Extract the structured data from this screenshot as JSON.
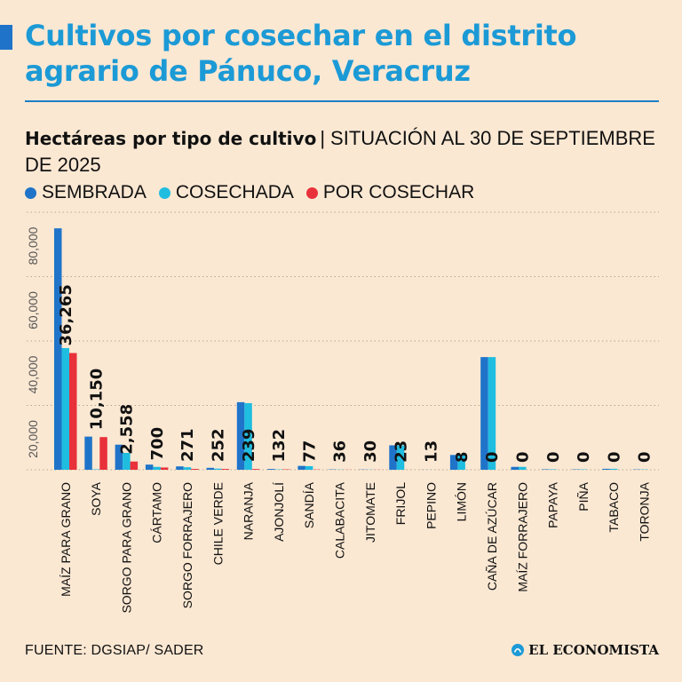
{
  "header": {
    "title": "Cultivos por cosechar en el distrito agrario de Pánuco, Veracruz",
    "subtitle_bold": "Hectáreas por tipo de cultivo",
    "subtitle_sep": "|",
    "subtitle_rest": "SITUACIÓN AL 30 DE SEPTIEMBRE DE 2025"
  },
  "colors": {
    "sembrada": "#1f74c9",
    "cosechada": "#1fbde0",
    "por_cosechar": "#e8313a",
    "title": "#1c9ad6"
  },
  "chart_data": {
    "type": "bar",
    "title": "Hectáreas por tipo de cultivo",
    "ylim": [
      0,
      80000
    ],
    "yticks": [
      20000,
      40000,
      60000,
      80000
    ],
    "ytick_labels": [
      "20,000",
      "40,000",
      "60,000",
      "80,000"
    ],
    "grid": true,
    "legend_position": "top-left",
    "categories": [
      "MAÍZ PARA GRANO",
      "SOYA",
      "SORGO PARA GRANO",
      "CÁRTAMO",
      "SORGO FORRAJERO",
      "CHILE VERDE",
      "NARANJA",
      "AJONJOLÍ",
      "SANDÍA",
      "CALABACITA",
      "JITOMATE",
      "FRIJOL",
      "PEPINO",
      "LIMÓN",
      "CAÑA DE AZÚCAR",
      "MAÍZ FORRAJERO",
      "PAPAYA",
      "PIÑA",
      "TABACO",
      "TORONJA"
    ],
    "series": [
      {
        "name": "SEMBRADA",
        "color": "#1f74c9",
        "values": [
          75000,
          10300,
          7800,
          1600,
          1050,
          600,
          21000,
          250,
          1200,
          100,
          80,
          7600,
          30,
          4600,
          35000,
          900,
          150,
          120,
          300,
          100
        ]
      },
      {
        "name": "COSECHADA",
        "color": "#1fbde0",
        "values": [
          37800,
          150,
          5240,
          900,
          779,
          348,
          20700,
          118,
          1123,
          64,
          50,
          7577,
          17,
          4592,
          35000,
          900,
          150,
          120,
          300,
          100
        ]
      },
      {
        "name": "POR COSECHAR",
        "color": "#e8313a",
        "values": [
          36265,
          10150,
          2558,
          700,
          271,
          252,
          239,
          132,
          77,
          36,
          30,
          23,
          13,
          8,
          0,
          0,
          0,
          0,
          0,
          0
        ]
      }
    ],
    "data_labels": [
      "36,265",
      "10,150",
      "2,558",
      "700",
      "271",
      "252",
      "239",
      "132",
      "77",
      "36",
      "30",
      "23",
      "13",
      "8",
      "0",
      "0",
      "0",
      "0",
      "0",
      "0"
    ]
  },
  "footer": {
    "source": "FUENTE: DGSIAP/ SADER",
    "brand": "EL ECONOMISTA"
  }
}
